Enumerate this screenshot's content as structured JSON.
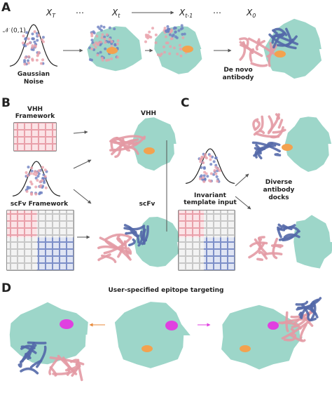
{
  "panels": {
    "a": {
      "letter": "A",
      "steps": [
        {
          "base": "X",
          "sub": "T"
        },
        {
          "text": "⋯"
        },
        {
          "base": "X",
          "sub": "t"
        },
        {
          "base": "X",
          "sub": "t-1"
        },
        {
          "text": "⋯"
        },
        {
          "base": "X",
          "sub": "0"
        }
      ],
      "prior": "𝒩 (0,1)",
      "noise_label": [
        "Gaussian",
        "Noise"
      ],
      "output_label": [
        "De novo",
        "antibody"
      ]
    },
    "b": {
      "letter": "B",
      "vhh_framework": [
        "VHH",
        "Framework"
      ],
      "vhh": "VHH",
      "scfv_framework": "scFv Framework",
      "scfv": "scFv"
    },
    "c": {
      "letter": "C",
      "template": [
        "Invariant",
        "template input"
      ],
      "docks": [
        "Diverse",
        "antibody",
        "docks"
      ]
    },
    "d": {
      "letter": "D",
      "title": "User-specified epitope targeting"
    }
  }
}
